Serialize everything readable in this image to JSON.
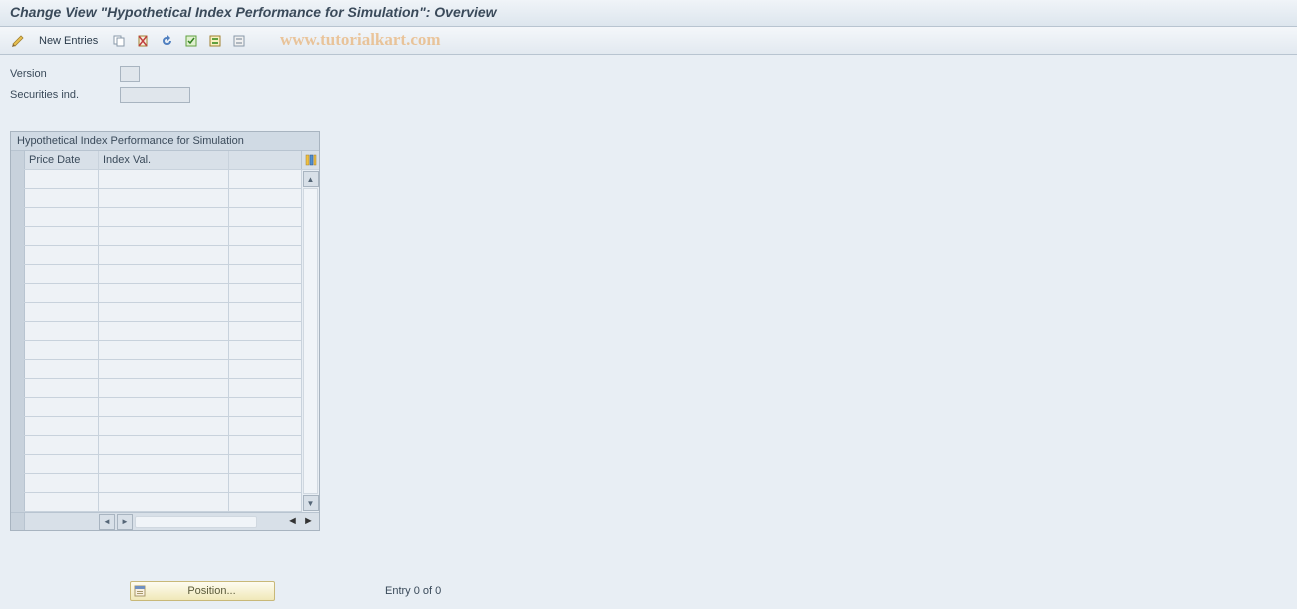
{
  "title": "Change View \"Hypothetical Index Performance for Simulation\": Overview",
  "watermark": "www.tutorialkart.com",
  "toolbar": {
    "new_entries_label": "New Entries"
  },
  "form": {
    "version_label": "Version",
    "version_value": "",
    "securities_label": "Securities ind.",
    "securities_value": ""
  },
  "grid": {
    "title": "Hypothetical Index Performance for Simulation",
    "col_price_date": "Price Date",
    "col_index_val": "Index Val.",
    "row_count": 18
  },
  "footer": {
    "position_label": "Position...",
    "entry_text": "Entry 0 of 0"
  },
  "colors": {
    "page_bg": "#e8eef4",
    "border": "#a8b4c0"
  }
}
